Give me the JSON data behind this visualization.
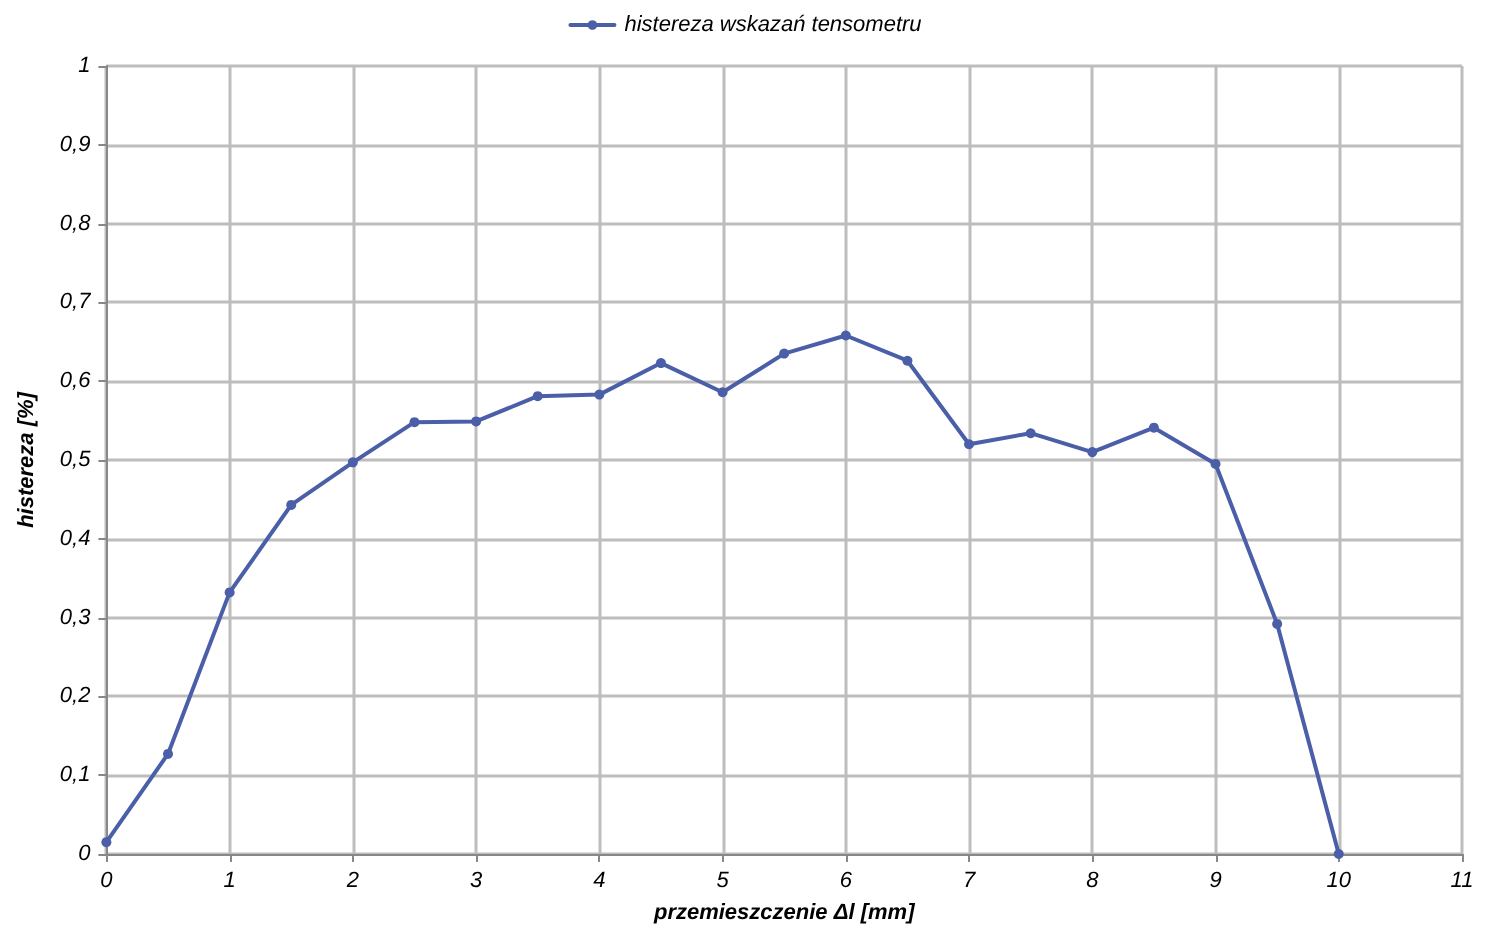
{
  "chart_data": {
    "type": "line",
    "xlabel": "przemieszczenie Δl [mm]",
    "ylabel": "histereza [%]",
    "x": [
      0,
      0.5,
      1,
      1.5,
      2,
      2.5,
      3,
      3.5,
      4,
      4.5,
      5,
      5.5,
      6,
      6.5,
      7,
      7.5,
      8,
      8.5,
      9,
      9.5,
      10
    ],
    "series": [
      {
        "name": "histereza wskazań tensometru",
        "color": "#4a5fa8",
        "values": [
          0.015,
          0.127,
          0.332,
          0.443,
          0.497,
          0.548,
          0.549,
          0.581,
          0.583,
          0.623,
          0.586,
          0.635,
          0.658,
          0.626,
          0.52,
          0.534,
          0.51,
          0.541,
          0.495,
          0.292,
          0.0
        ]
      }
    ],
    "xlim": [
      0,
      11
    ],
    "xticks": [
      0,
      1,
      2,
      3,
      4,
      5,
      6,
      7,
      8,
      9,
      10,
      11
    ],
    "ylim": [
      0,
      1
    ],
    "yticks": [
      0,
      {
        "value": 0.1,
        "label": "0,1"
      },
      {
        "value": 0.2,
        "label": "0,2"
      },
      {
        "value": 0.3,
        "label": "0,3"
      },
      {
        "value": 0.4,
        "label": "0,4"
      },
      {
        "value": 0.5,
        "label": "0,5"
      },
      {
        "value": 0.6,
        "label": "0,6"
      },
      {
        "value": 0.7,
        "label": "0,7"
      },
      {
        "value": 0.8,
        "label": "0,8"
      },
      {
        "value": 0.9,
        "label": "0,9"
      },
      1
    ],
    "grid": true,
    "legend": "top",
    "marker": "circle",
    "line_style": "solid"
  }
}
